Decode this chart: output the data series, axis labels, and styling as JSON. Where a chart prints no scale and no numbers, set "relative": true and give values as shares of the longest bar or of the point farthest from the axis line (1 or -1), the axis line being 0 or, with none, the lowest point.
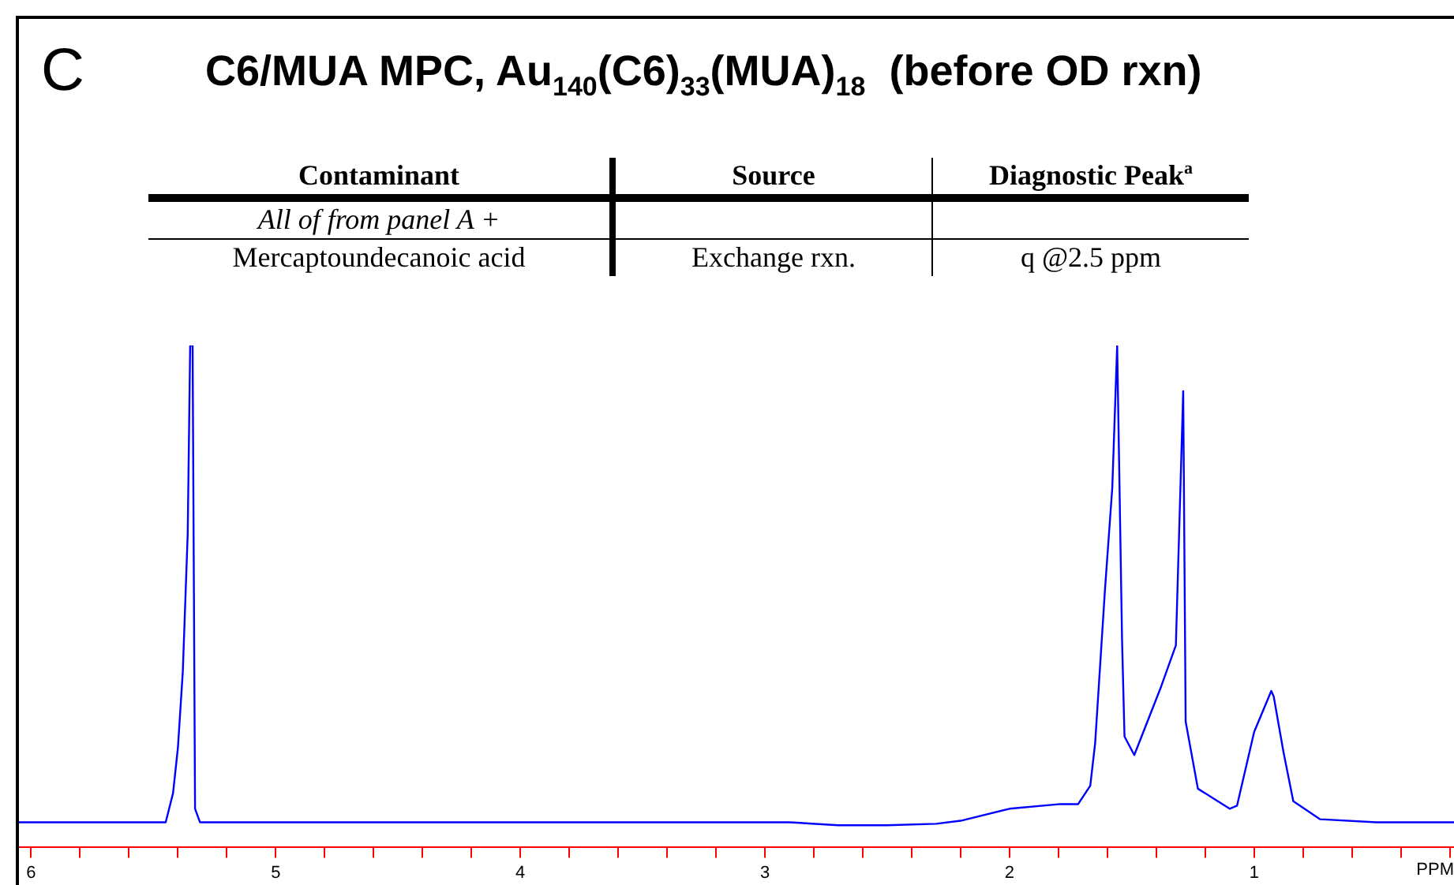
{
  "chart_data": {
    "type": "line",
    "title": "C6/MUA MPC, Au$_{140}$(C6)$_{33}$(MUA)$_{18}$  (before OD rxn)",
    "xlabel": "PPM",
    "relative": true,
    "marker": "none",
    "legend": false,
    "grid": false,
    "annotations": [
      "C",
      "Contaminant",
      "Source",
      "Diagnostic Peak$^{a}$",
      "All of from panel A  +",
      "Mercaptoundecanoic acid",
      "Exchange rxn.",
      "q @2.5 ppm"
    ],
    "xlim": [
      6.05,
      0.17
    ],
    "xticks": [
      6,
      {
        "value": 5.8,
        "label": null
      },
      {
        "value": 5.6,
        "label": null
      },
      {
        "value": 5.4,
        "label": null
      },
      {
        "value": 5.2,
        "label": null
      },
      5,
      {
        "value": 4.8,
        "label": null
      },
      {
        "value": 4.6,
        "label": null
      },
      {
        "value": 4.4,
        "label": null
      },
      {
        "value": 4.2,
        "label": null
      },
      4,
      {
        "value": 3.8,
        "label": null
      },
      {
        "value": 3.6,
        "label": null
      },
      {
        "value": 3.4,
        "label": null
      },
      {
        "value": 3.2,
        "label": null
      },
      3,
      {
        "value": 2.8,
        "label": null
      },
      {
        "value": 2.6,
        "label": null
      },
      {
        "value": 2.4,
        "label": null
      },
      {
        "value": 2.2,
        "label": null
      },
      2,
      {
        "value": 1.8,
        "label": null
      },
      {
        "value": 1.6,
        "label": null
      },
      {
        "value": 1.4,
        "label": null
      },
      {
        "value": 1.2,
        "label": null
      },
      1,
      {
        "value": 0.8,
        "label": null
      },
      {
        "value": 0.6,
        "label": null
      },
      {
        "value": 0.4,
        "label": null
      },
      {
        "value": 0.2,
        "label": null
      }
    ],
    "series": [
      {
        "color": "#0000ff",
        "x": [
          6.05,
          5.5,
          5.45,
          5.42,
          5.4,
          5.38,
          5.36,
          5.35,
          5.34,
          5.33,
          5.31,
          4.5,
          3.5,
          2.9,
          2.7,
          2.5,
          2.3,
          2.2,
          2.0,
          1.8,
          1.72,
          1.67,
          1.65,
          1.61,
          1.58,
          1.56,
          1.54,
          1.53,
          1.49,
          1.38,
          1.32,
          1.29,
          1.28,
          1.23,
          1.1,
          1.07,
          1.0,
          0.93,
          0.92,
          0.88,
          0.84,
          0.73,
          0.5,
          0.17
        ],
        "values": [
          0.049,
          0.049,
          0.049,
          0.107,
          0.198,
          0.35,
          0.625,
          1,
          1,
          0.076,
          0.049,
          0.049,
          0.049,
          0.049,
          0.043,
          0.043,
          0.046,
          0.052,
          0.076,
          0.085,
          0.085,
          0.122,
          0.207,
          0.512,
          0.716,
          1,
          0.412,
          0.22,
          0.183,
          0.32,
          0.402,
          0.909,
          0.25,
          0.116,
          0.076,
          0.082,
          0.229,
          0.311,
          0.3,
          0.189,
          0.091,
          0.055,
          0.049,
          0.049
        ]
      }
    ]
  }
}
